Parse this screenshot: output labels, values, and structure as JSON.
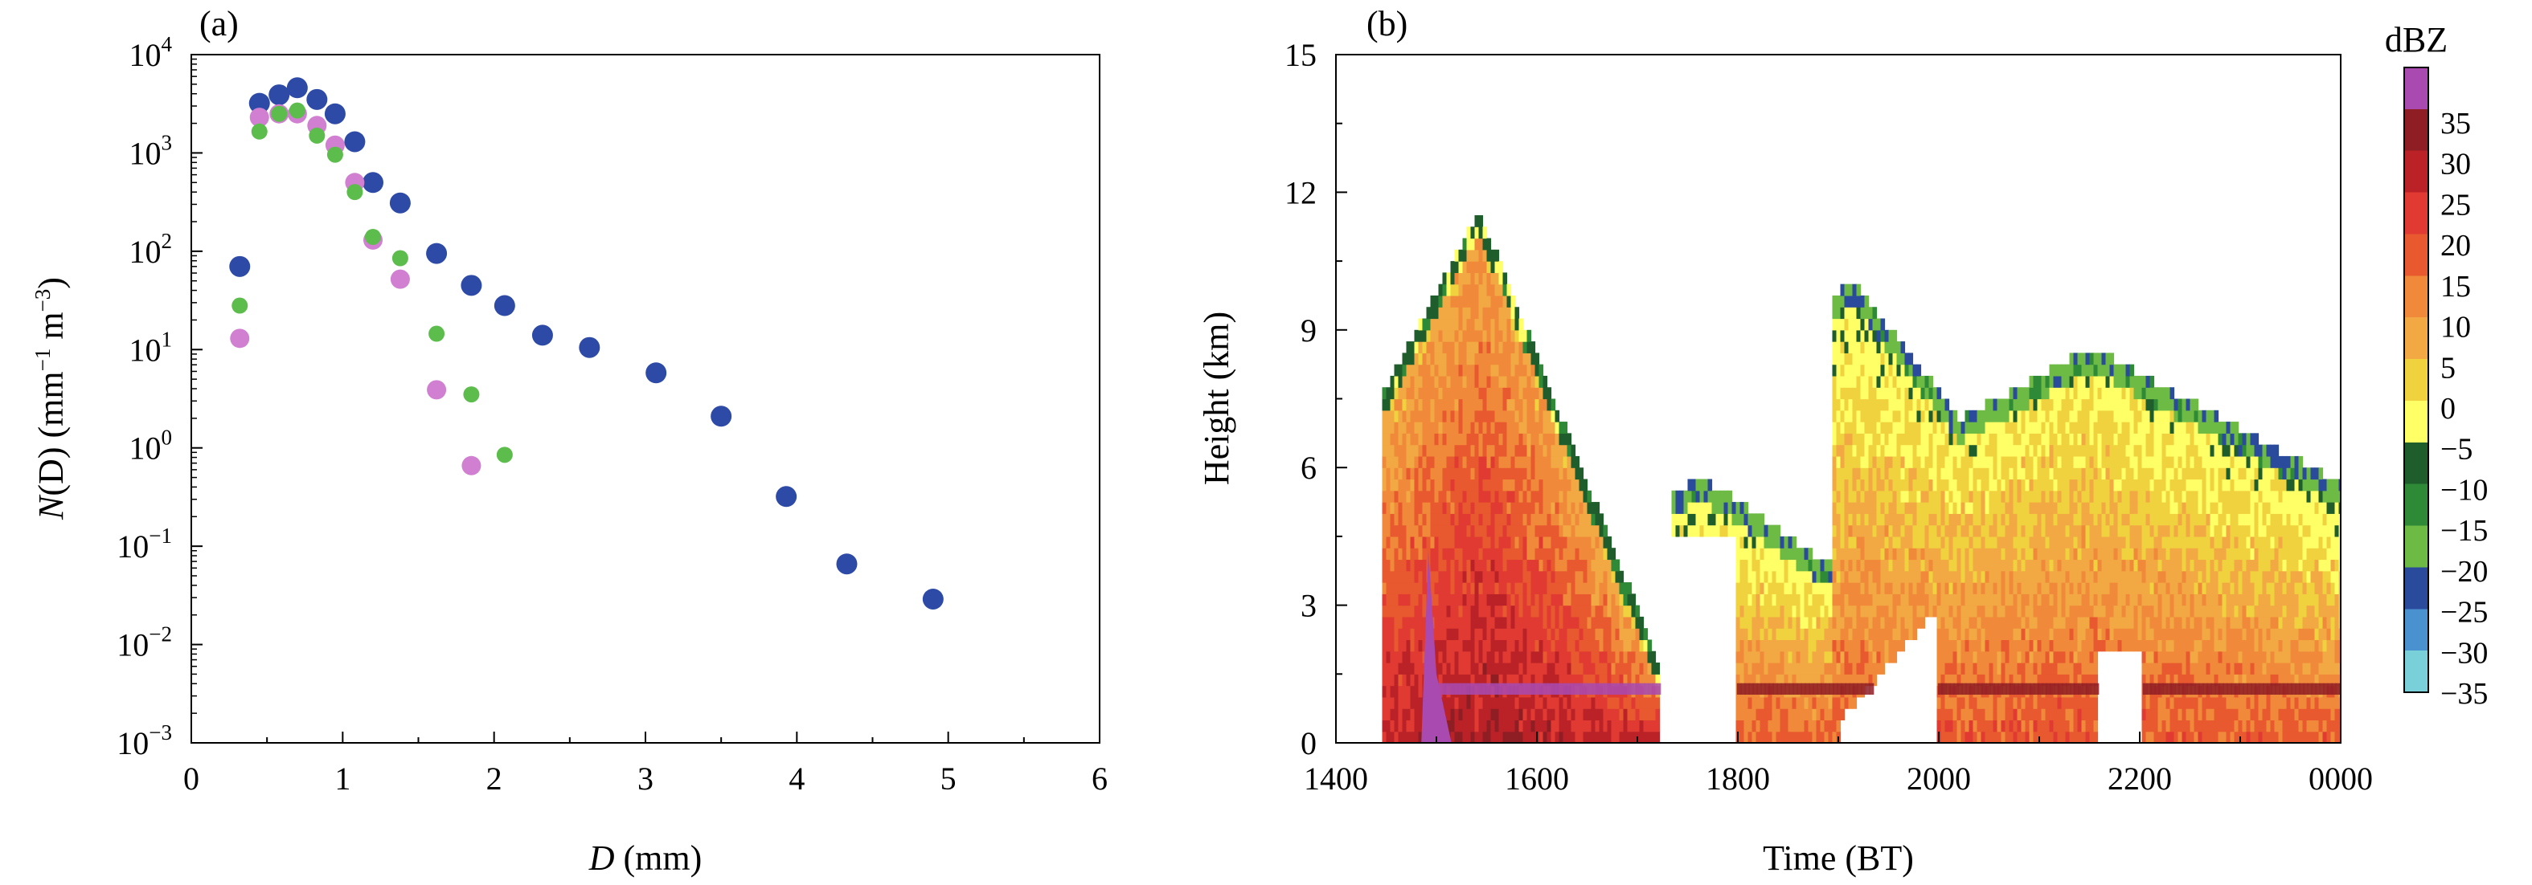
{
  "chart_data": [
    {
      "type": "scatter",
      "panel_label": "(a)",
      "xlabel_var": "D",
      "xlabel_unit": " (mm)",
      "ylabel_var": "N",
      "ylabel_rest": "(D) (mm",
      "ylabel_unit_mid": " m",
      "ylabel_end": ")",
      "ylabel_exp1": "−1",
      "ylabel_exp2": "−3",
      "xlim": [
        0,
        6
      ],
      "ylim": [
        -3,
        4
      ],
      "yscale": "log10",
      "x_ticks": [
        "0",
        "1",
        "2",
        "3",
        "4",
        "5",
        "6"
      ],
      "y_tick_base": "10",
      "y_tick_exps": [
        "−3",
        "−2",
        "−1",
        "0",
        "1",
        "2",
        "3",
        "4"
      ],
      "series": [
        {
          "name": "series-blue",
          "color": "#2c4aa6",
          "points": [
            [
              0.32,
              70
            ],
            [
              0.45,
              3200
            ],
            [
              0.58,
              3900
            ],
            [
              0.7,
              4600
            ],
            [
              0.83,
              3500
            ],
            [
              0.95,
              2500
            ],
            [
              1.08,
              1300
            ],
            [
              1.2,
              500
            ],
            [
              1.38,
              310
            ],
            [
              1.62,
              95
            ],
            [
              1.85,
              45
            ],
            [
              2.07,
              28
            ],
            [
              2.32,
              14
            ],
            [
              2.63,
              10.5
            ],
            [
              3.07,
              5.8
            ],
            [
              3.5,
              2.1
            ],
            [
              3.93,
              0.32
            ],
            [
              4.33,
              0.066
            ],
            [
              4.9,
              0.029
            ]
          ]
        },
        {
          "name": "series-pink",
          "color": "#d07fd1",
          "points": [
            [
              0.32,
              13
            ],
            [
              0.45,
              2300
            ],
            [
              0.58,
              2500
            ],
            [
              0.7,
              2500
            ],
            [
              0.83,
              1900
            ],
            [
              0.95,
              1200
            ],
            [
              1.08,
              500
            ],
            [
              1.2,
              130
            ],
            [
              1.38,
              52
            ],
            [
              1.62,
              3.9
            ],
            [
              1.85,
              0.66
            ]
          ]
        },
        {
          "name": "series-green",
          "color": "#5cbd4c",
          "points": [
            [
              0.32,
              28
            ],
            [
              0.45,
              1650
            ],
            [
              0.58,
              2500
            ],
            [
              0.7,
              2700
            ],
            [
              0.83,
              1500
            ],
            [
              0.95,
              960
            ],
            [
              1.08,
              400
            ],
            [
              1.2,
              140
            ],
            [
              1.38,
              85
            ],
            [
              1.62,
              14.5
            ],
            [
              1.85,
              3.5
            ],
            [
              2.07,
              0.85
            ]
          ]
        }
      ]
    },
    {
      "type": "heatmap",
      "panel_label": "(b)",
      "xlabel": "Time (BT)",
      "ylabel": "Height (km)",
      "x_ticks": [
        "1400",
        "1600",
        "1800",
        "2000",
        "2200",
        "0000"
      ],
      "x_tick_hours": [
        14,
        16,
        18,
        20,
        22,
        24
      ],
      "xlim_hours": [
        14,
        24
      ],
      "y_ticks": [
        "0",
        "3",
        "6",
        "9",
        "12",
        "15"
      ],
      "ylim": [
        0,
        15
      ],
      "colorbar_title": "dBZ",
      "colorbar_labels": [
        "35",
        "30",
        "25",
        "20",
        "15",
        "10",
        "5",
        "0",
        "−5",
        "−10",
        "−15",
        "−20",
        "−25",
        "−30",
        "−35"
      ],
      "colorbar_colors": [
        "#a84ab0",
        "#8f1d24",
        "#bb2228",
        "#e03a32",
        "#e8592f",
        "#f08a3a",
        "#f2a843",
        "#f0d23e",
        "#ffff66",
        "#1f5e2c",
        "#2f8a37",
        "#6dbb45",
        "#2a4a9c",
        "#4a92cf",
        "#7ad0d8"
      ],
      "regions": [
        {
          "name": "cell-1",
          "start": 14.5,
          "end": 17.3,
          "top": 11.8,
          "peak": 30
        },
        {
          "name": "cell-2",
          "start": 17.5,
          "end": 19.0,
          "top": 6.0,
          "peak": 20
        },
        {
          "name": "cell-3",
          "start": 18.9,
          "end": 24.0,
          "top": 10.0,
          "peak": 20
        },
        {
          "name": "bright-band",
          "start": 15.0,
          "end": 24.0,
          "top": 1.3,
          "peak": 30
        }
      ]
    }
  ]
}
